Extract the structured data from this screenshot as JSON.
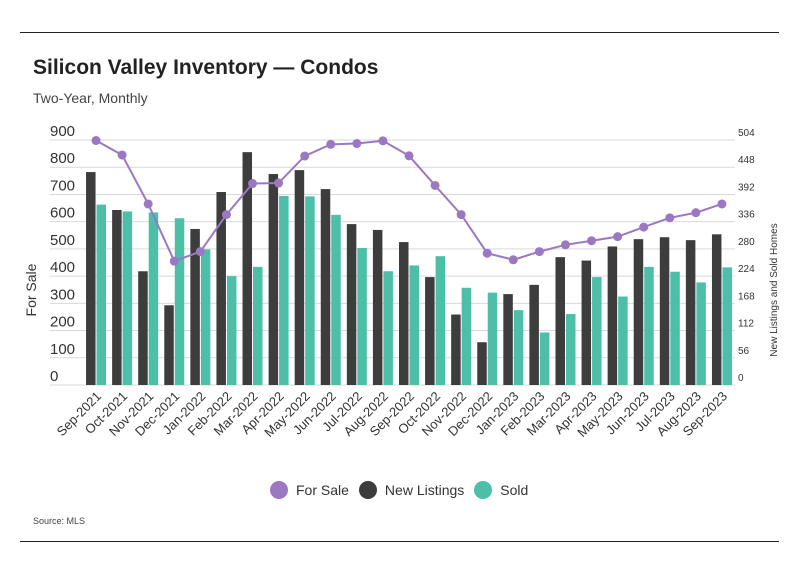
{
  "title": "Silicon Valley Inventory — Condos",
  "subtitle": "Two-Year, Monthly",
  "source": "Source:  MLS",
  "colors": {
    "for_sale": "#9b79c2",
    "new_listings": "#3d3d3d",
    "sold": "#4dbea8",
    "grid": "#d9d9d9"
  },
  "chart_data": {
    "type": "bar",
    "categories": [
      "Sep-2021",
      "Oct-2021",
      "Nov-2021",
      "Dec-2021",
      "Jan-2022",
      "Feb-2022",
      "Mar-2022",
      "Apr-2022",
      "May-2022",
      "Jun-2022",
      "Jul-2022",
      "Aug-2022",
      "Sep-2022",
      "Oct-2022",
      "Nov-2022",
      "Dec-2022",
      "Jan-2023",
      "Feb-2023",
      "Mar-2023",
      "Apr-2023",
      "May-2023",
      "Jun-2023",
      "Jul-2023",
      "Aug-2023",
      "Sep-2023"
    ],
    "ylabel": "For Sale",
    "y2label": "New Listings and Sold Homes",
    "ylim": [
      0,
      900
    ],
    "y2lim": [
      0,
      504
    ],
    "yticks": [
      0,
      100,
      200,
      300,
      400,
      500,
      600,
      700,
      800,
      900
    ],
    "y2ticks": [
      0,
      56,
      112,
      168,
      224,
      280,
      336,
      392,
      448,
      504
    ],
    "legend_position": "bottom",
    "grid": true,
    "series": [
      {
        "name": "For Sale",
        "type": "line",
        "axis": "left",
        "values": [
          898,
          845,
          665,
          455,
          490,
          626,
          740,
          742,
          841,
          884,
          887,
          897,
          842,
          733,
          626,
          484,
          460,
          490,
          515,
          530,
          545,
          580,
          614,
          633,
          665
        ]
      },
      {
        "name": "New Listings",
        "type": "bar",
        "axis": "right",
        "values": [
          438,
          360,
          234,
          164,
          321,
          397,
          479,
          434,
          442,
          403,
          331,
          319,
          294,
          222,
          145,
          88,
          187,
          206,
          263,
          256,
          285,
          300,
          304,
          298,
          310
        ]
      },
      {
        "name": "Sold",
        "type": "bar",
        "axis": "right",
        "values": [
          371,
          357,
          355,
          343,
          279,
          224,
          243,
          389,
          388,
          350,
          282,
          234,
          246,
          265,
          200,
          190,
          154,
          108,
          146,
          222,
          182,
          243,
          233,
          211,
          242
        ]
      }
    ]
  }
}
